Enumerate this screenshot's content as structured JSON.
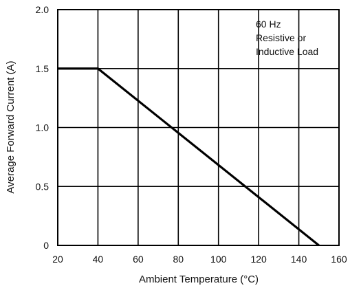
{
  "chart_data": {
    "type": "line",
    "title": "",
    "xlabel": "Ambient Temperature (°C)",
    "ylabel": "Average Forward Current (A)",
    "xlim": [
      20,
      160
    ],
    "ylim": [
      0,
      2.0
    ],
    "x_ticks": [
      20,
      40,
      60,
      80,
      100,
      120,
      140,
      160
    ],
    "x_tick_labels": [
      "20",
      "40",
      "60",
      "80",
      "100",
      "120",
      "140",
      "160"
    ],
    "y_ticks": [
      0,
      0.5,
      1.0,
      1.5,
      2.0
    ],
    "y_tick_labels": [
      "0",
      "0.5",
      "1.0",
      "1.5",
      "2.0"
    ],
    "grid": true,
    "series": [
      {
        "x": [
          20,
          40,
          150
        ],
        "y": [
          1.5,
          1.5,
          0
        ]
      }
    ],
    "annotation": {
      "lines": [
        "60 Hz",
        "Resistive or",
        "Inductive Load"
      ],
      "position": "top-right"
    }
  }
}
